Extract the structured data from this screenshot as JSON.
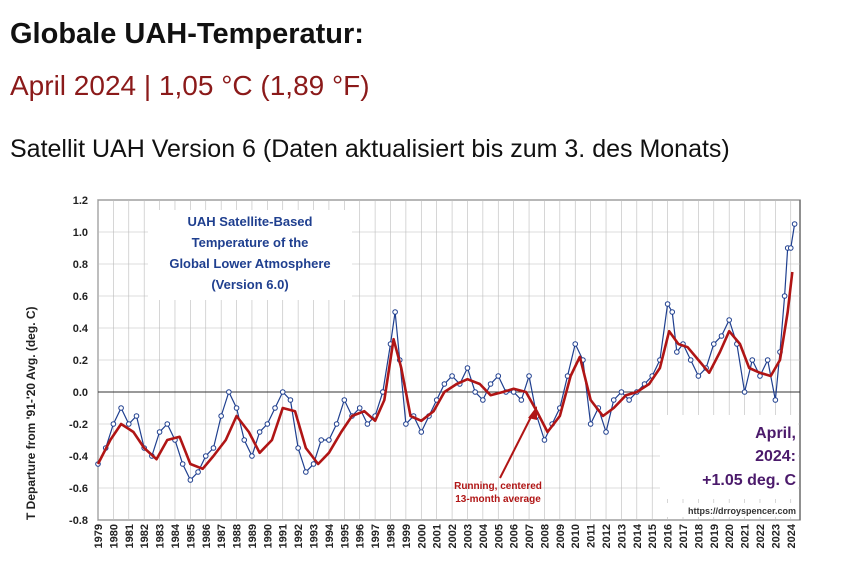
{
  "header": {
    "title": "Globale UAH-Temperatur:",
    "subtitle": "April 2024 | 1,05 °C (1,89 °F)",
    "source_line": "Satellit UAH Version 6 (Daten aktualisiert bis zum 3. des Monats)"
  },
  "colors": {
    "monthly_line": "#1f3f8f",
    "running_avg": "#b01515",
    "title_box_text": "#1f3f8f",
    "subtitle_text": "#8b1a1a",
    "callout_text": "#4b1a6b",
    "grid": "#bbbbbb"
  },
  "chart_data": {
    "type": "line",
    "title": "UAH Satellite-Based Temperature of the Global Lower Atmosphere (Version 6.0)",
    "title_lines": [
      "UAH Satellite-Based",
      "Temperature of the",
      "Global Lower Atmosphere",
      "(Version 6.0)"
    ],
    "ylabel": "T Departure from '91-'20 Avg. (deg. C)",
    "xlabel": "",
    "ylim": [
      -0.8,
      1.2
    ],
    "y_ticks": [
      "-0.8",
      "-0.6",
      "-0.4",
      "-0.2",
      "0.0",
      "0.2",
      "0.4",
      "0.6",
      "0.8",
      "1.0",
      "1.2"
    ],
    "x_ticks": [
      "1979",
      "1980",
      "1981",
      "1982",
      "1983",
      "1984",
      "1985",
      "1986",
      "1987",
      "1988",
      "1989",
      "1990",
      "1991",
      "1992",
      "1993",
      "1994",
      "1995",
      "1996",
      "1997",
      "1998",
      "1999",
      "2000",
      "2001",
      "2002",
      "2003",
      "2004",
      "2005",
      "2006",
      "2007",
      "2008",
      "2009",
      "2010",
      "2011",
      "2012",
      "2013",
      "2014",
      "2015",
      "2016",
      "2017",
      "2018",
      "2019",
      "2020",
      "2021",
      "2022",
      "2023",
      "2024"
    ],
    "grid": "on",
    "series": [
      {
        "name": "",
        "style": "monthly points, blue line with open circles",
        "x": [
          1979.0,
          1979.5,
          1980.0,
          1980.5,
          1981.0,
          1981.5,
          1982.0,
          1982.5,
          1983.0,
          1983.5,
          1984.0,
          1984.5,
          1985.0,
          1985.5,
          1986.0,
          1986.5,
          1987.0,
          1987.5,
          1988.0,
          1988.5,
          1989.0,
          1989.5,
          1990.0,
          1990.5,
          1991.0,
          1991.5,
          1992.0,
          1992.5,
          1993.0,
          1993.5,
          1994.0,
          1994.5,
          1995.0,
          1995.5,
          1996.0,
          1996.5,
          1997.0,
          1997.5,
          1998.0,
          1998.3,
          1998.6,
          1999.0,
          1999.5,
          2000.0,
          2000.5,
          2001.0,
          2001.5,
          2002.0,
          2002.5,
          2003.0,
          2003.5,
          2004.0,
          2004.5,
          2005.0,
          2005.5,
          2006.0,
          2006.5,
          2007.0,
          2007.5,
          2008.0,
          2008.5,
          2009.0,
          2009.5,
          2010.0,
          2010.5,
          2011.0,
          2011.5,
          2012.0,
          2012.5,
          2013.0,
          2013.5,
          2014.0,
          2014.5,
          2015.0,
          2015.5,
          2016.0,
          2016.3,
          2016.6,
          2017.0,
          2017.5,
          2018.0,
          2018.5,
          2019.0,
          2019.5,
          2020.0,
          2020.5,
          2021.0,
          2021.5,
          2022.0,
          2022.5,
          2023.0,
          2023.3,
          2023.6,
          2023.8,
          2024.0,
          2024.25
        ],
        "y": [
          -0.45,
          -0.35,
          -0.2,
          -0.1,
          -0.2,
          -0.15,
          -0.35,
          -0.4,
          -0.25,
          -0.2,
          -0.3,
          -0.45,
          -0.55,
          -0.5,
          -0.4,
          -0.35,
          -0.15,
          0.0,
          -0.1,
          -0.3,
          -0.4,
          -0.25,
          -0.2,
          -0.1,
          0.0,
          -0.05,
          -0.35,
          -0.5,
          -0.45,
          -0.3,
          -0.3,
          -0.2,
          -0.05,
          -0.15,
          -0.1,
          -0.2,
          -0.15,
          0.0,
          0.3,
          0.5,
          0.2,
          -0.2,
          -0.15,
          -0.25,
          -0.15,
          -0.05,
          0.05,
          0.1,
          0.05,
          0.15,
          0.0,
          -0.05,
          0.05,
          0.1,
          0.0,
          0.0,
          -0.05,
          0.1,
          -0.15,
          -0.3,
          -0.2,
          -0.1,
          0.1,
          0.3,
          0.2,
          -0.2,
          -0.1,
          -0.25,
          -0.05,
          0.0,
          -0.05,
          0.0,
          0.05,
          0.1,
          0.2,
          0.55,
          0.5,
          0.25,
          0.3,
          0.2,
          0.1,
          0.15,
          0.3,
          0.35,
          0.45,
          0.3,
          0.0,
          0.2,
          0.1,
          0.2,
          -0.05,
          0.25,
          0.6,
          0.9,
          0.9,
          1.05
        ]
      },
      {
        "name": "Running, centered 13-month average",
        "style": "thick red line",
        "x": [
          1979.0,
          1979.8,
          1980.5,
          1981.3,
          1982.0,
          1982.8,
          1983.5,
          1984.3,
          1985.0,
          1985.8,
          1986.5,
          1987.3,
          1988.0,
          1988.8,
          1989.5,
          1990.3,
          1991.0,
          1991.8,
          1992.5,
          1993.3,
          1994.0,
          1994.8,
          1995.5,
          1996.3,
          1997.0,
          1997.6,
          1998.2,
          1998.7,
          1999.3,
          2000.0,
          2000.8,
          2001.5,
          2002.3,
          2003.0,
          2003.8,
          2004.5,
          2005.3,
          2006.0,
          2006.8,
          2007.5,
          2008.2,
          2009.0,
          2009.7,
          2010.3,
          2011.0,
          2011.8,
          2012.5,
          2013.3,
          2014.0,
          2014.8,
          2015.5,
          2016.1,
          2016.7,
          2017.3,
          2018.0,
          2018.7,
          2019.4,
          2020.0,
          2020.7,
          2021.3,
          2022.0,
          2022.7,
          2023.3,
          2023.8,
          2024.1
        ],
        "y": [
          -0.45,
          -0.3,
          -0.2,
          -0.25,
          -0.35,
          -0.42,
          -0.3,
          -0.28,
          -0.45,
          -0.48,
          -0.4,
          -0.3,
          -0.15,
          -0.25,
          -0.38,
          -0.3,
          -0.1,
          -0.12,
          -0.35,
          -0.45,
          -0.38,
          -0.25,
          -0.15,
          -0.12,
          -0.18,
          -0.05,
          0.33,
          0.15,
          -0.15,
          -0.18,
          -0.12,
          0.0,
          0.05,
          0.08,
          0.05,
          -0.02,
          0.0,
          0.02,
          0.0,
          -0.12,
          -0.25,
          -0.15,
          0.1,
          0.22,
          -0.05,
          -0.15,
          -0.1,
          -0.02,
          0.0,
          0.05,
          0.15,
          0.38,
          0.3,
          0.28,
          0.2,
          0.12,
          0.25,
          0.38,
          0.3,
          0.15,
          0.12,
          0.1,
          0.2,
          0.5,
          0.75
        ]
      }
    ],
    "annotations": {
      "running_avg_note": "Running, centered\n13-month average",
      "callout_line1": "April,",
      "callout_line2": "2024:",
      "callout_line3": "+1.05 deg. C",
      "url": "https://drroyspencer.com"
    }
  }
}
